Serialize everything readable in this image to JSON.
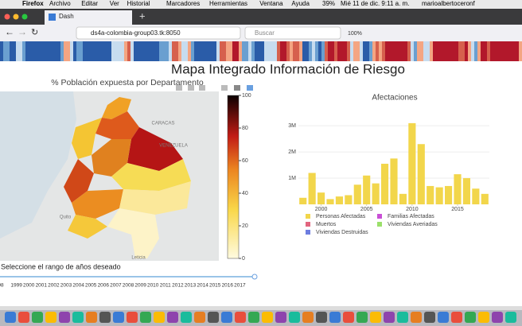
{
  "menu_bar": {
    "app": "Firefox",
    "items": [
      "Archivo",
      "Editar",
      "Ver",
      "Historial",
      "Marcadores",
      "Herramientas",
      "Ventana",
      "Ayuda"
    ],
    "battery": "39%",
    "clock": "Mié 11 de dic.  9:11 a. m.",
    "user": "marioalbertoceronf"
  },
  "browser": {
    "tab": "Dash",
    "url": "ds4a-colombia-group03.tk:8050",
    "search": "Buscar",
    "zoom": "100%"
  },
  "page": {
    "title": "Mapa Integrado Información de Riesgo",
    "map": {
      "title": "% Población expuesta por Departamento",
      "places": [
        "CARACAS",
        "VENEZUELA",
        "Quito",
        "Leticia"
      ],
      "colorbar_ticks": [
        0,
        20,
        40,
        60,
        80,
        100
      ]
    },
    "slider": {
      "label": "Seleccione el rango de años deseado",
      "years": [
        "98",
        "1999",
        "2000",
        "2001",
        "2002",
        "2003",
        "2004",
        "2005",
        "2006",
        "2007",
        "2008",
        "2009",
        "2010",
        "2011",
        "2012",
        "2013",
        "2014",
        "2015",
        "2016",
        "2017"
      ]
    }
  },
  "chart_data": {
    "type": "bar",
    "title": "Afectaciones",
    "x": [
      1998,
      1999,
      2000,
      2001,
      2002,
      2003,
      2004,
      2005,
      2006,
      2007,
      2008,
      2009,
      2010,
      2011,
      2012,
      2013,
      2014,
      2015,
      2016,
      2017,
      2018
    ],
    "series": [
      {
        "name": "Personas Afectadas",
        "color": "#f2d64b",
        "values": [
          250000,
          1200000,
          450000,
          200000,
          300000,
          350000,
          750000,
          1100000,
          800000,
          1550000,
          1750000,
          400000,
          3100000,
          2300000,
          700000,
          650000,
          700000,
          1150000,
          1000000,
          600000,
          400000
        ]
      }
    ],
    "legend": [
      {
        "name": "Personas Afectadas",
        "color": "#f2d64b"
      },
      {
        "name": "Familias Afectadas",
        "color": "#c94fd6"
      },
      {
        "name": "Muertos",
        "color": "#e2657f"
      },
      {
        "name": "Viviendas Averiadas",
        "color": "#9be06a"
      },
      {
        "name": "Viviendas Destruidas",
        "color": "#6d7de0"
      }
    ],
    "xlim": [
      1997.5,
      2018.5
    ],
    "xticks": [
      2000,
      2005,
      2010,
      2015
    ],
    "ylim": [
      0,
      3400000
    ],
    "yticks": [
      {
        "value": 1000000,
        "label": "1M"
      },
      {
        "value": 2000000,
        "label": "2M"
      },
      {
        "value": 3000000,
        "label": "3M"
      }
    ],
    "grid": true
  }
}
